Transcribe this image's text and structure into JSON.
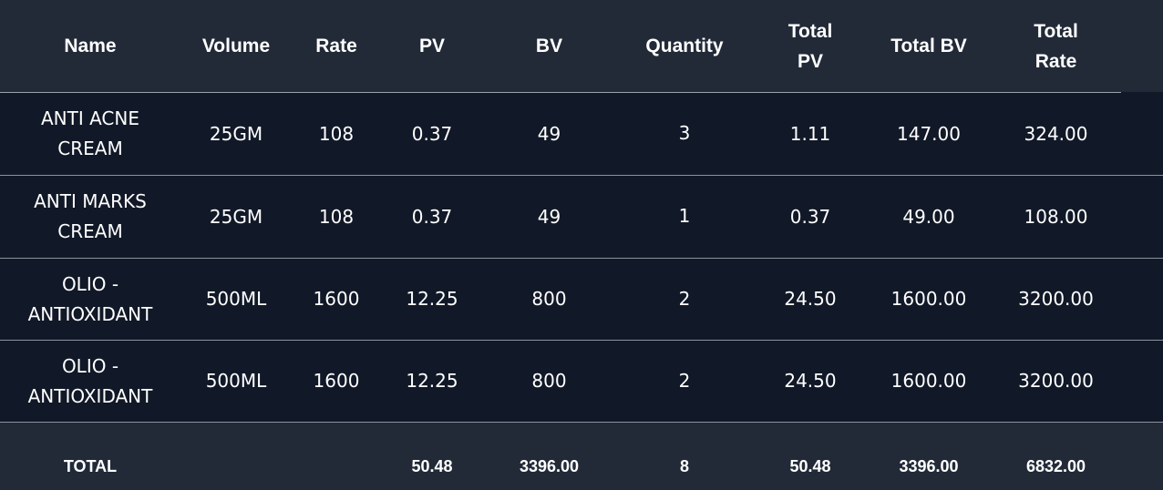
{
  "columns": {
    "name": "Name",
    "volume": "Volume",
    "rate": "Rate",
    "pv": "PV",
    "bv": "BV",
    "quantity": "Quantity",
    "total_pv": "Total PV",
    "total_bv": "Total BV",
    "total_rate": "Total Rate"
  },
  "rows": [
    {
      "name": "ANTI ACNE CREAM",
      "volume": "25GM",
      "rate": "108",
      "pv": "0.37",
      "bv": "49",
      "quantity": "3",
      "total_pv": "1.11",
      "total_bv": "147.00",
      "total_rate": "324.00"
    },
    {
      "name": "ANTI MARKS CREAM",
      "volume": "25GM",
      "rate": "108",
      "pv": "0.37",
      "bv": "49",
      "quantity": "1",
      "total_pv": "0.37",
      "total_bv": "49.00",
      "total_rate": "108.00"
    },
    {
      "name": "OLIO - ANTIOXIDANT",
      "volume": "500ML",
      "rate": "1600",
      "pv": "12.25",
      "bv": "800",
      "quantity": "2",
      "total_pv": "24.50",
      "total_bv": "1600.00",
      "total_rate": "3200.00"
    },
    {
      "name": "OLIO - ANTIOXIDANT",
      "volume": "500ML",
      "rate": "1600",
      "pv": "12.25",
      "bv": "800",
      "quantity": "2",
      "total_pv": "24.50",
      "total_bv": "1600.00",
      "total_rate": "3200.00"
    }
  ],
  "footer": {
    "label": "TOTAL",
    "volume": "",
    "rate": "",
    "pv": "50.48",
    "bv": "3396.00",
    "quantity": "8",
    "total_pv": "50.48",
    "total_bv": "3396.00",
    "total_rate": "6832.00"
  },
  "colors": {
    "header_bg": "#222a38",
    "body_bg": "#111827",
    "divider": "#9aa3ad",
    "text": "#ffffff"
  }
}
